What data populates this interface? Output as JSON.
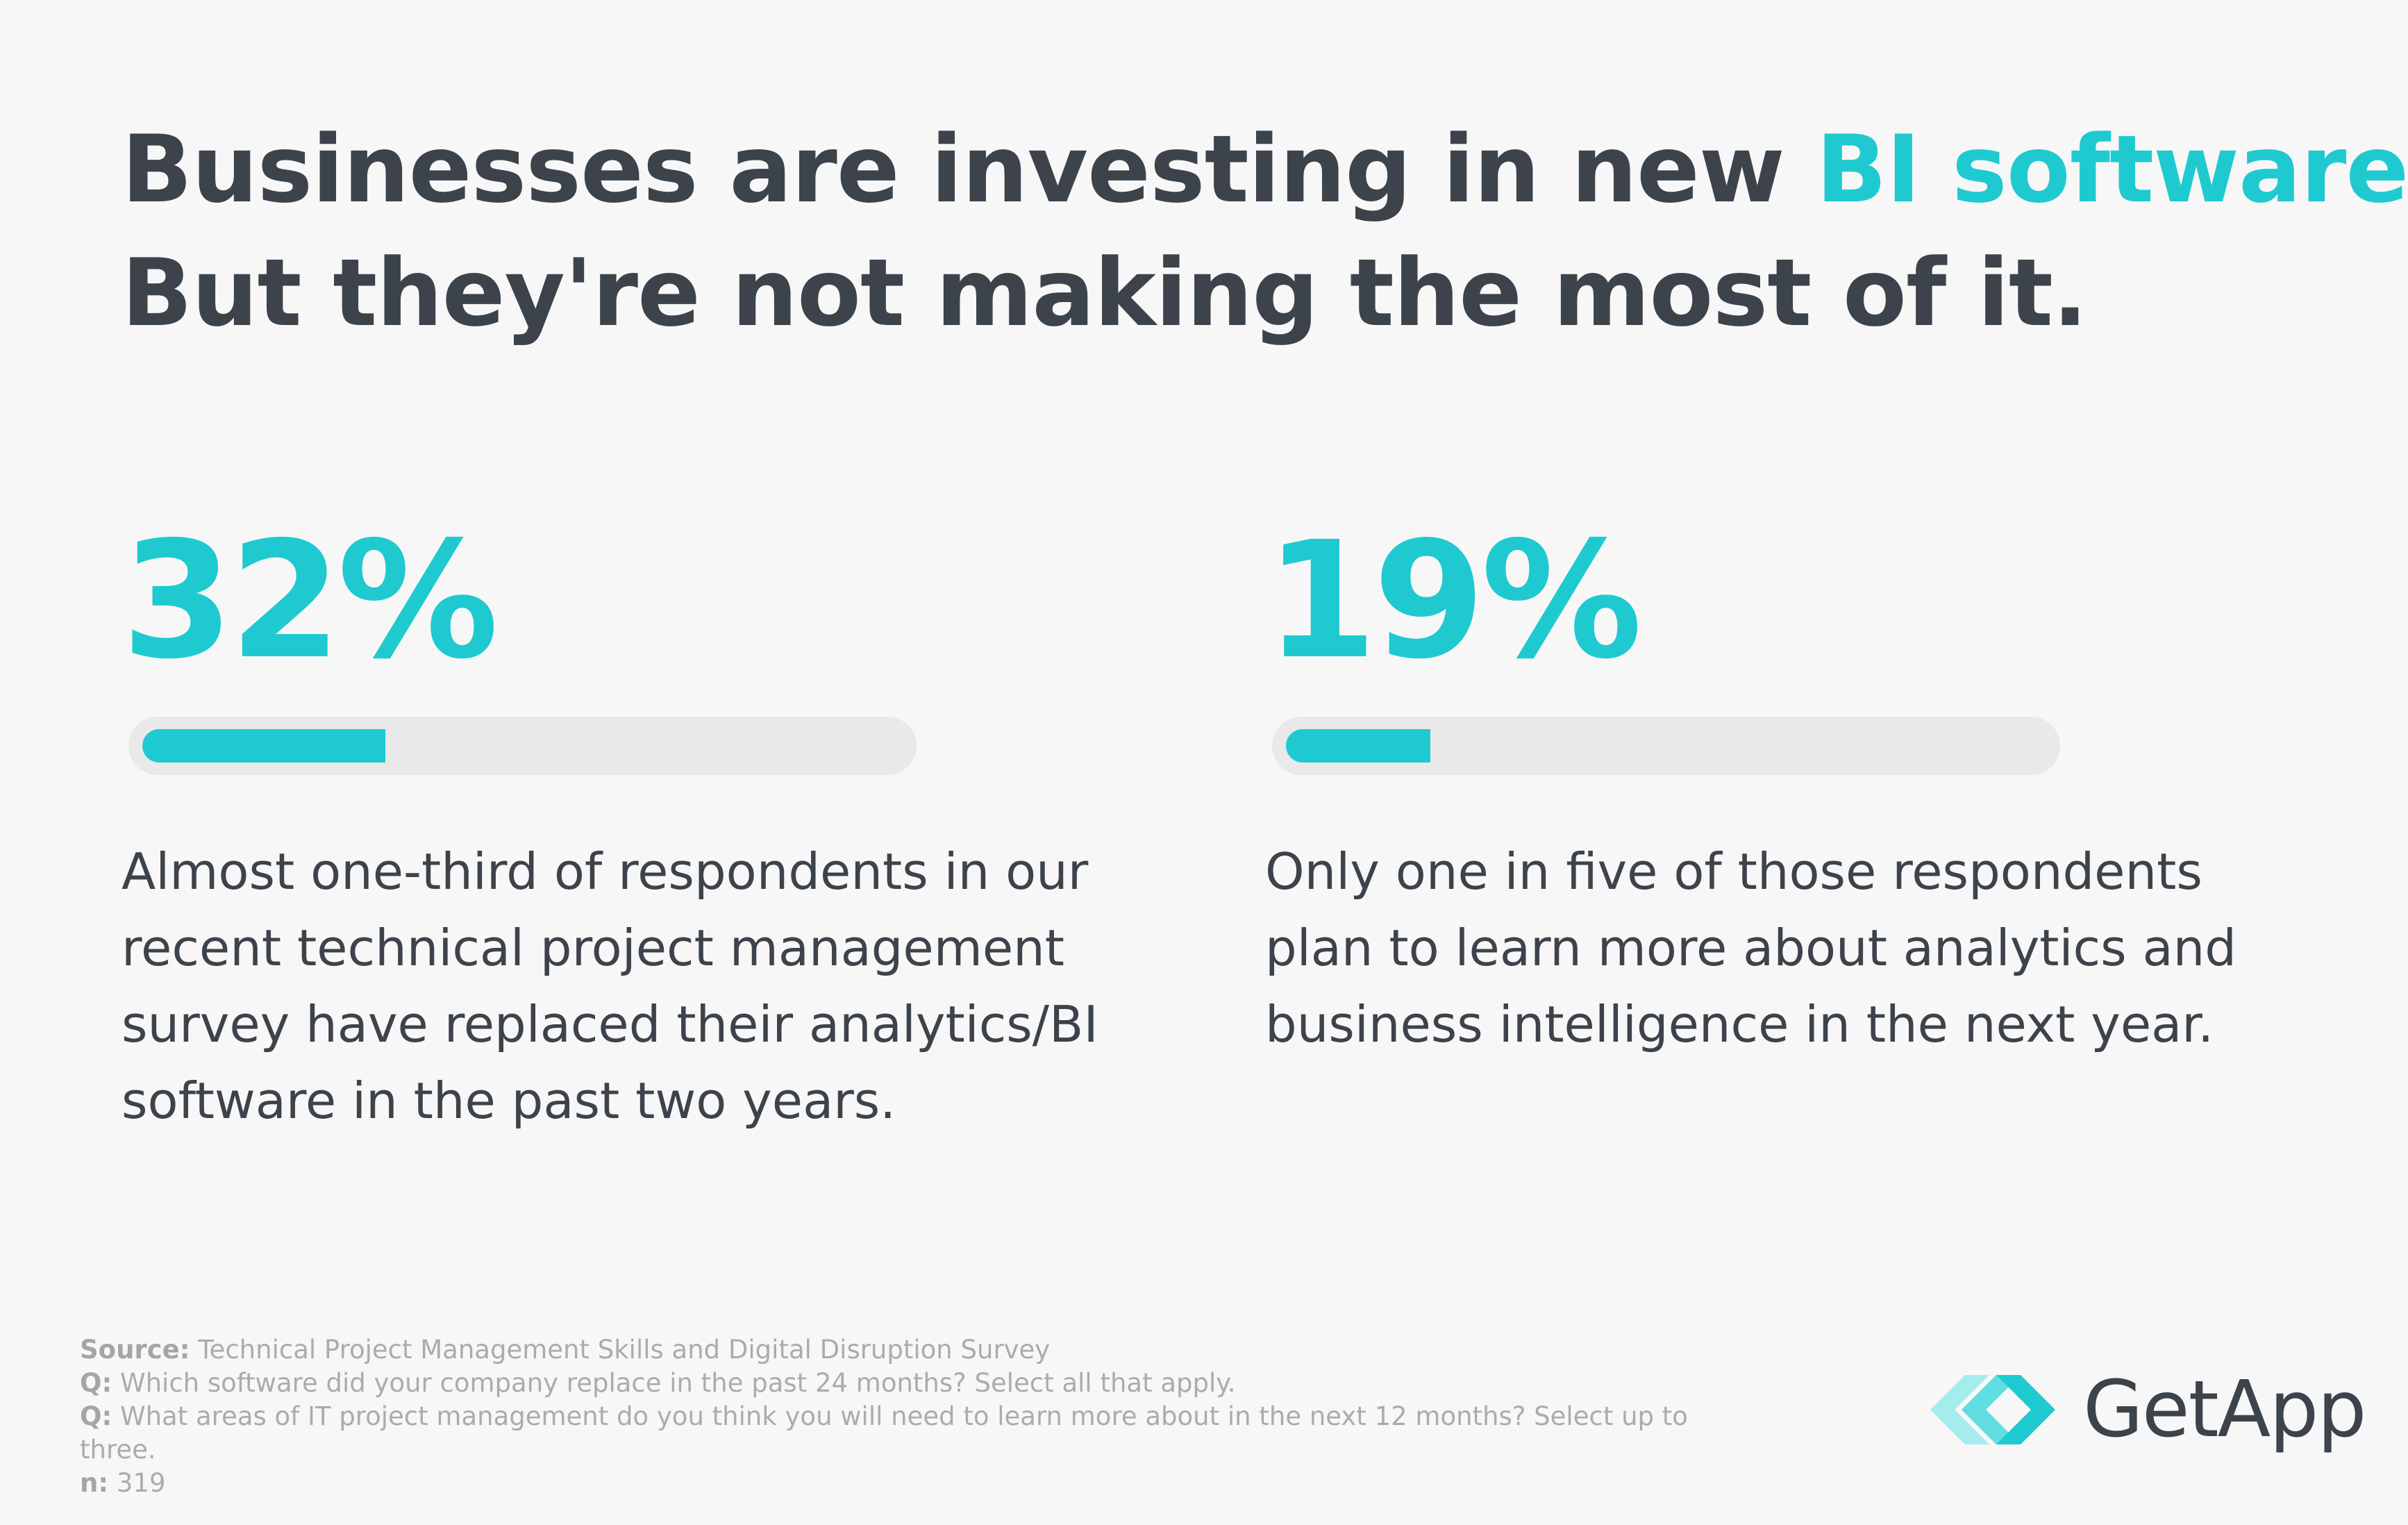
{
  "headline": {
    "line1_prefix": "Businesses are investing in new ",
    "line1_accent": "BI software.",
    "line2": "But they're not making the most of it."
  },
  "stats": [
    {
      "value": "32%",
      "fill_fraction": 0.32,
      "description": "Almost one-third of respondents in our recent technical project management survey have replaced their analytics/BI software in the past two years."
    },
    {
      "value": "19%",
      "fill_fraction": 0.19,
      "description": "Only one in five of those respondents plan to learn more about analytics and business intelligence in the next year."
    }
  ],
  "footnotes": {
    "source_label": "Source:",
    "source_text": " Technical Project Management Skills and Digital Disruption Survey",
    "q1_label": "Q:",
    "q1_text": " Which software did your company replace in the past 24 months? Select all that apply.",
    "q2_label": "Q:",
    "q2_text": " What areas of IT project management do you think you will need to learn more about in the next 12 months? Select up to three.",
    "n_label": "n:",
    "n_text": " 319"
  },
  "logo": {
    "text": "GetApp",
    "icon": "getapp-chevrons-icon"
  },
  "colors": {
    "accent": "#1ecad0",
    "text": "#3d434a",
    "track": "#e8e9e8",
    "background": "#f7f7f7",
    "muted": "#a9acaf"
  }
}
